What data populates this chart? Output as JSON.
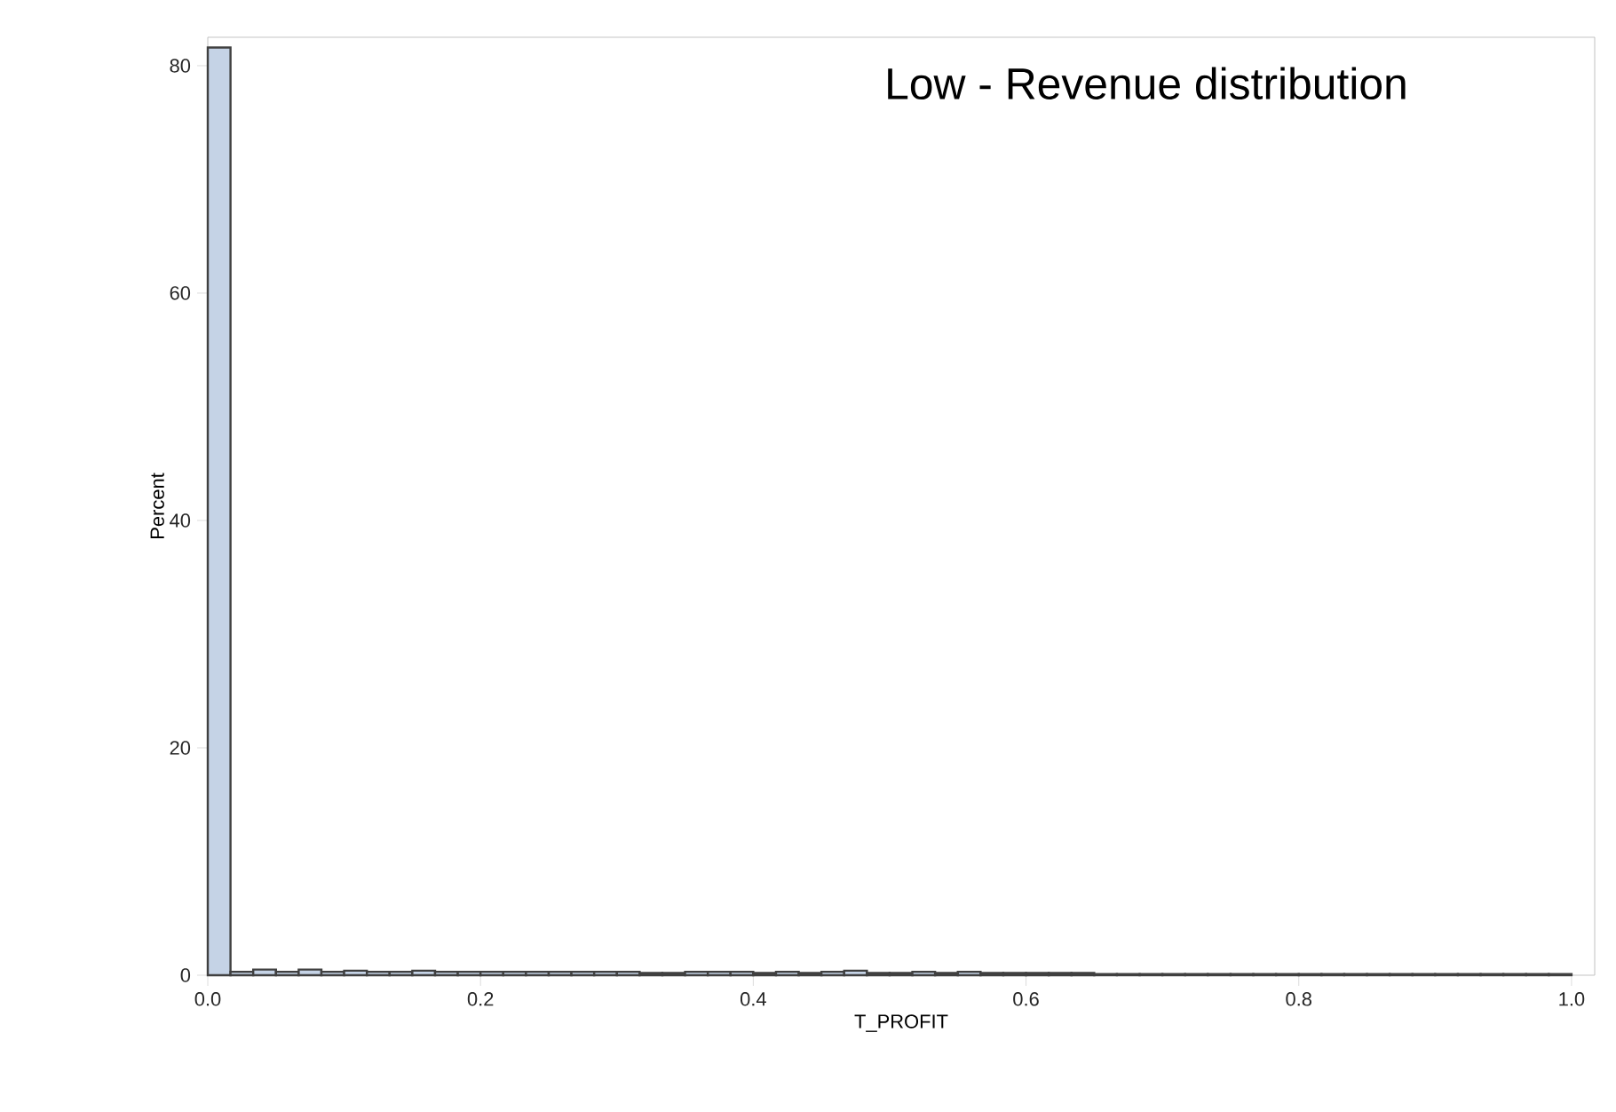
{
  "chart_data": {
    "type": "histogram",
    "title": "Low - Revenue distribution",
    "xlabel": "T_PROFIT",
    "ylabel": "Percent",
    "bins": [
      0,
      0.016667,
      0.033333,
      0.05,
      0.066667,
      0.083333,
      0.1,
      0.116667,
      0.133333,
      0.15,
      0.166667,
      0.183333,
      0.2,
      0.216667,
      0.233333,
      0.25,
      0.266667,
      0.283333,
      0.3,
      0.316667,
      0.333333,
      0.35,
      0.366667,
      0.383333,
      0.4,
      0.416667,
      0.433333,
      0.45,
      0.466667,
      0.483333,
      0.5,
      0.516667,
      0.533333,
      0.55,
      0.566667,
      0.583333,
      0.6,
      0.616667,
      0.633333,
      0.65,
      0.666667,
      0.683333,
      0.7,
      0.716667,
      0.733333,
      0.75,
      0.766667,
      0.783333,
      0.8,
      0.816667,
      0.833333,
      0.85,
      0.866667,
      0.883333,
      0.9,
      0.916667,
      0.933333,
      0.95,
      0.966667,
      0.983333,
      1.0
    ],
    "values": [
      81.6,
      0.3,
      0.5,
      0.3,
      0.5,
      0.3,
      0.4,
      0.3,
      0.3,
      0.4,
      0.3,
      0.3,
      0.3,
      0.3,
      0.3,
      0.3,
      0.3,
      0.3,
      0.3,
      0.2,
      0.2,
      0.3,
      0.3,
      0.3,
      0.2,
      0.3,
      0.2,
      0.3,
      0.4,
      0.2,
      0.2,
      0.3,
      0.2,
      0.3,
      0.2,
      0.2,
      0.2,
      0.2,
      0.2,
      0.1,
      0.1,
      0.1,
      0.1,
      0.1,
      0.1,
      0.1,
      0.1,
      0.1,
      0.1,
      0.1,
      0.1,
      0.1,
      0.1,
      0.1,
      0.1,
      0.1,
      0.1,
      0.1,
      0.1,
      0.1
    ],
    "color": "#c5d3e6",
    "xlim": [
      0,
      1.017
    ],
    "ylim": [
      0,
      82.5
    ],
    "xticks": [
      {
        "value": 0,
        "label": "0.0"
      },
      {
        "value": 0.2,
        "label": "0.2"
      },
      {
        "value": 0.4,
        "label": "0.4"
      },
      {
        "value": 0.6,
        "label": "0.6"
      },
      {
        "value": 0.8,
        "label": "0.8"
      },
      {
        "value": 1.0,
        "label": "1.0"
      }
    ],
    "yticks": [
      0,
      20,
      40,
      60,
      80
    ],
    "grid": false
  }
}
